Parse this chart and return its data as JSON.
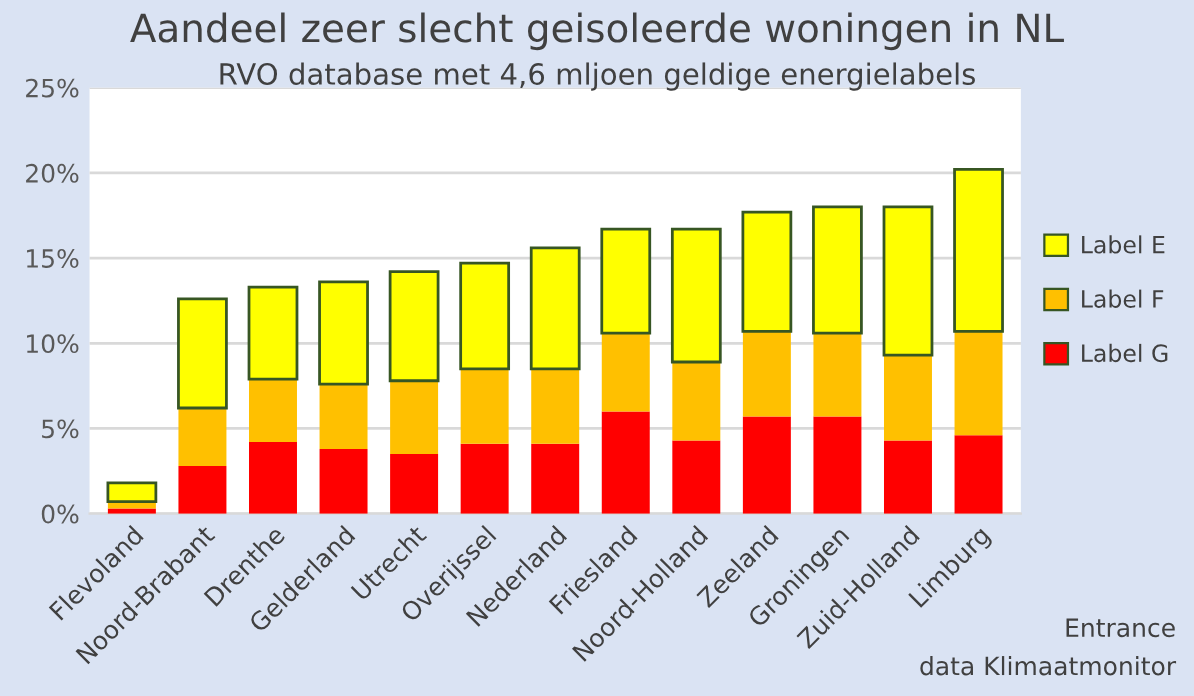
{
  "chart_data": {
    "type": "bar",
    "stacked": true,
    "title": "Aandeel zeer slecht geisoleerde woningen in NL",
    "subtitle": "RVO database met 4,6 mljoen geldige energielabels",
    "categories": [
      "Flevoland",
      "Noord-Brabant",
      "Drenthe",
      "Gelderland",
      "Utrecht",
      "Overijssel",
      "Nederland",
      "Friesland",
      "Noord-Holland",
      "Zeeland",
      "Groningen",
      "Zuid-Holland",
      "Limburg"
    ],
    "series": [
      {
        "name": "Label G",
        "color": "#ff0000",
        "values": [
          0.3,
          2.8,
          4.2,
          3.8,
          3.5,
          4.1,
          4.1,
          6.0,
          4.3,
          5.7,
          5.7,
          4.3,
          4.6
        ]
      },
      {
        "name": "Label F",
        "color": "#ffc000",
        "values": [
          0.4,
          3.4,
          3.7,
          3.8,
          4.3,
          4.4,
          4.4,
          4.6,
          4.6,
          5.0,
          4.9,
          5.0,
          6.1
        ]
      },
      {
        "name": "Label E",
        "color": "#ffff00",
        "values": [
          1.1,
          6.4,
          5.4,
          6.0,
          6.4,
          6.2,
          7.1,
          6.1,
          7.8,
          7.0,
          7.4,
          8.7,
          9.5
        ]
      }
    ],
    "ylim": [
      0,
      25
    ],
    "yticks": [
      {
        "value": 0,
        "label": "0%"
      },
      {
        "value": 5,
        "label": "5%"
      },
      {
        "value": 10,
        "label": "10%"
      },
      {
        "value": 15,
        "label": "15%"
      },
      {
        "value": 20,
        "label": "20%"
      },
      {
        "value": 25,
        "label": "25%"
      }
    ],
    "grid": "y",
    "legend": "right",
    "annotations": [
      "Entrance",
      "data Klimaatmonitor"
    ]
  }
}
